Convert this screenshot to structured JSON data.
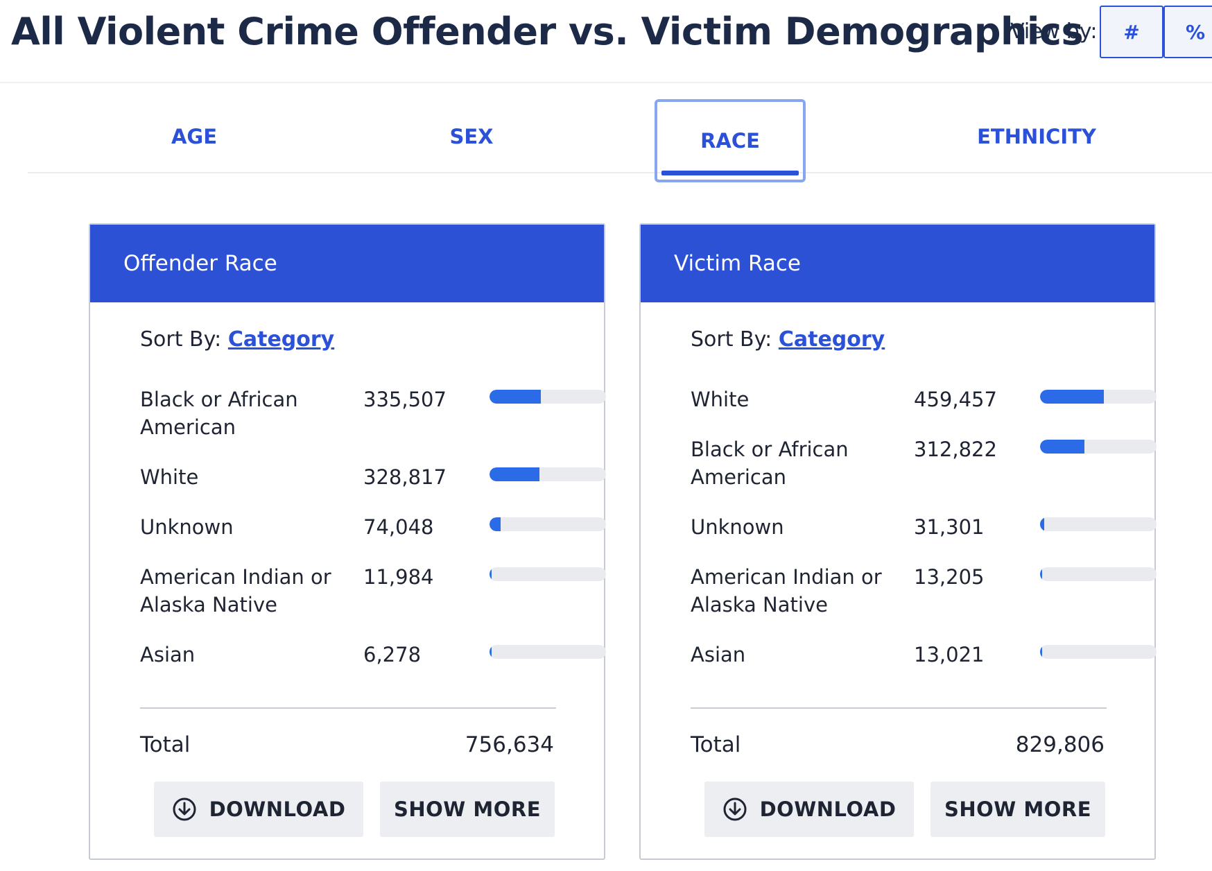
{
  "header": {
    "title": "All Violent Crime Offender vs. Victim Demographics",
    "view_by_label": "View by:",
    "view_count_label": "#",
    "view_percent_label": "%"
  },
  "tabs": [
    {
      "label": "AGE",
      "selected": false
    },
    {
      "label": "SEX",
      "selected": false
    },
    {
      "label": "RACE",
      "selected": true
    },
    {
      "label": "ETHNICITY",
      "selected": false
    }
  ],
  "offender_card": {
    "title": "Offender Race",
    "sort_by_label": "Sort By:",
    "sort_by_value": "Category",
    "rows": [
      {
        "label": "Black or African American",
        "value": "335,507",
        "fill_fraction": 0.44
      },
      {
        "label": "White",
        "value": "328,817",
        "fill_fraction": 0.43
      },
      {
        "label": "Unknown",
        "value": "74,048",
        "fill_fraction": 0.098
      },
      {
        "label": "American Indian or Alaska Native",
        "value": "11,984",
        "fill_fraction": 0.016
      },
      {
        "label": "Asian",
        "value": "6,278",
        "fill_fraction": 0.008
      }
    ],
    "total_label": "Total",
    "total_value": "756,634",
    "download_label": "DOWNLOAD",
    "show_more_label": "SHOW MORE"
  },
  "victim_card": {
    "title": "Victim Race",
    "sort_by_label": "Sort By:",
    "sort_by_value": "Category",
    "rows": [
      {
        "label": "White",
        "value": "459,457",
        "fill_fraction": 0.55
      },
      {
        "label": "Black or African American",
        "value": "312,822",
        "fill_fraction": 0.38
      },
      {
        "label": "Unknown",
        "value": "31,301",
        "fill_fraction": 0.038
      },
      {
        "label": "American Indian or Alaska Native",
        "value": "13,205",
        "fill_fraction": 0.016
      },
      {
        "label": "Asian",
        "value": "13,021",
        "fill_fraction": 0.016
      }
    ],
    "total_label": "Total",
    "total_value": "829,806",
    "download_label": "DOWNLOAD",
    "show_more_label": "SHOW MORE"
  },
  "colors": {
    "accent": "#2c51d9",
    "card_header": "#2c51d5",
    "bar_fill": "#2c6be8",
    "bar_track": "#e9ebef",
    "title_text": "#1c2a48"
  },
  "icons": {
    "download": "download-circle-arrow-icon"
  }
}
